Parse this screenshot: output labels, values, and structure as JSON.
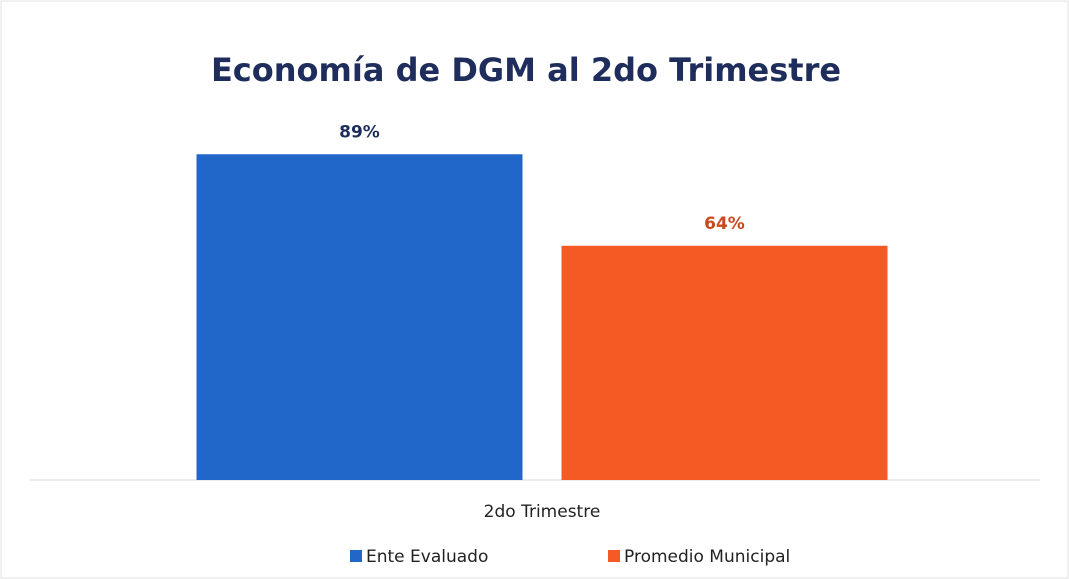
{
  "chart_data": {
    "type": "bar",
    "title": "Economía de DGM al 2do Trimestre",
    "categories": [
      "2do Trimestre"
    ],
    "series": [
      {
        "name": "Ente Evaluado",
        "color": "#2167c9",
        "values": [
          89
        ],
        "value_labels": [
          "89%"
        ],
        "label_color": "#1f2d5c"
      },
      {
        "name": "Promedio Municipal",
        "color": "#f65a24",
        "values": [
          64
        ],
        "value_labels": [
          "64%"
        ],
        "label_color": "#c8491c"
      }
    ],
    "ylim": [
      0,
      100
    ],
    "legend": "bottom"
  }
}
